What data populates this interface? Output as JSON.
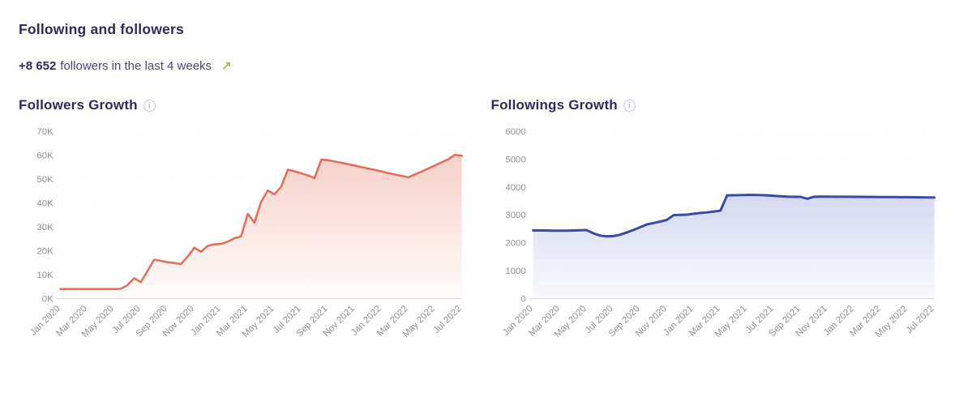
{
  "header": {
    "title": "Following and followers",
    "delta_value": "+8 652",
    "delta_text": "followers in the last 4 weeks",
    "trend_icon": "↗"
  },
  "icons": {
    "info_glyph": "i"
  },
  "colors": {
    "heading_text": "#2f2a5d",
    "subtitle_text": "#4b4374",
    "trend_green": "#95c83d",
    "axis_text": "#8f8f96",
    "axis_line": "#d9d9de"
  },
  "chart_data": [
    {
      "type": "area",
      "title": "Followers Growth",
      "x_start": "Jan 2020",
      "x_end": "Jul 2022",
      "sampling": "biweekly",
      "x_tick_labels": [
        "Jan 2020",
        "Mar 2020",
        "May 2020",
        "Jul 2020",
        "Sep 2020",
        "Nov 2020",
        "Jan 2021",
        "Mar 2021",
        "May 2021",
        "Jul 2021",
        "Sep 2021",
        "Nov 2021",
        "Jan 2022",
        "Mar 2022",
        "May 2022",
        "Jul 2022"
      ],
      "y_tick_values": [
        0,
        10000,
        20000,
        30000,
        40000,
        50000,
        60000,
        70000
      ],
      "y_tick_labels": [
        "0K",
        "10K",
        "20K",
        "30K",
        "40K",
        "50K",
        "60K",
        "70K"
      ],
      "ylim": [
        0,
        70000
      ],
      "values": [
        4000,
        4000,
        4000,
        4000,
        4000,
        4000,
        4000,
        4000,
        4000,
        4100,
        5600,
        8500,
        6900,
        11500,
        16300,
        15800,
        15200,
        14900,
        14400,
        17500,
        21300,
        19600,
        22000,
        22700,
        22900,
        23800,
        25200,
        26000,
        35400,
        31800,
        40500,
        45200,
        43600,
        46800,
        53900,
        53200,
        52400,
        51500,
        50400,
        58100,
        57900,
        57300,
        56800,
        56200,
        55600,
        55000,
        54400,
        53800,
        53200,
        52500,
        51900,
        51300,
        50700,
        51900,
        53100,
        54400,
        55700,
        57000,
        58300,
        60100,
        59700
      ],
      "line_color": "#e0705a",
      "line_width": 2.6,
      "fill_from": "rgba(232,114,92,0.38)",
      "fill_to": "rgba(232,114,92,0.02)",
      "grid": "faint dotted horizontal",
      "legend": "none"
    },
    {
      "type": "area",
      "title": "Followings Growth",
      "x_start": "Jan 2020",
      "x_end": "Jul 2022",
      "sampling": "biweekly",
      "x_tick_labels": [
        "Jan 2020",
        "Mar 2020",
        "May 2020",
        "Jul 2020",
        "Sep 2020",
        "Nov 2020",
        "Jan 2021",
        "Mar 2021",
        "May 2021",
        "Jul 2021",
        "Sep 2021",
        "Nov 2021",
        "Jan 2022",
        "Mar 2022",
        "May 2022",
        "Jul 2022"
      ],
      "y_tick_values": [
        0,
        1000,
        2000,
        3000,
        4000,
        5000,
        6000
      ],
      "y_tick_labels": [
        "0",
        "1000",
        "2000",
        "3000",
        "4000",
        "5000",
        "6000"
      ],
      "ylim": [
        0,
        6000
      ],
      "values": [
        2440,
        2440,
        2440,
        2435,
        2435,
        2435,
        2440,
        2450,
        2455,
        2340,
        2260,
        2230,
        2240,
        2290,
        2370,
        2460,
        2560,
        2660,
        2710,
        2760,
        2820,
        2990,
        3000,
        3010,
        3040,
        3070,
        3090,
        3120,
        3150,
        3700,
        3705,
        3710,
        3715,
        3715,
        3710,
        3700,
        3685,
        3670,
        3655,
        3645,
        3645,
        3580,
        3650,
        3652,
        3652,
        3650,
        3650,
        3648,
        3646,
        3645,
        3643,
        3642,
        3640,
        3639,
        3638,
        3636,
        3634,
        3632,
        3630,
        3627,
        3620
      ],
      "line_color": "#3a4ba3",
      "line_width": 3,
      "fill_from": "rgba(86,106,198,0.40)",
      "fill_to": "rgba(86,106,198,0.03)",
      "grid": "faint dotted horizontal",
      "legend": "none"
    }
  ]
}
